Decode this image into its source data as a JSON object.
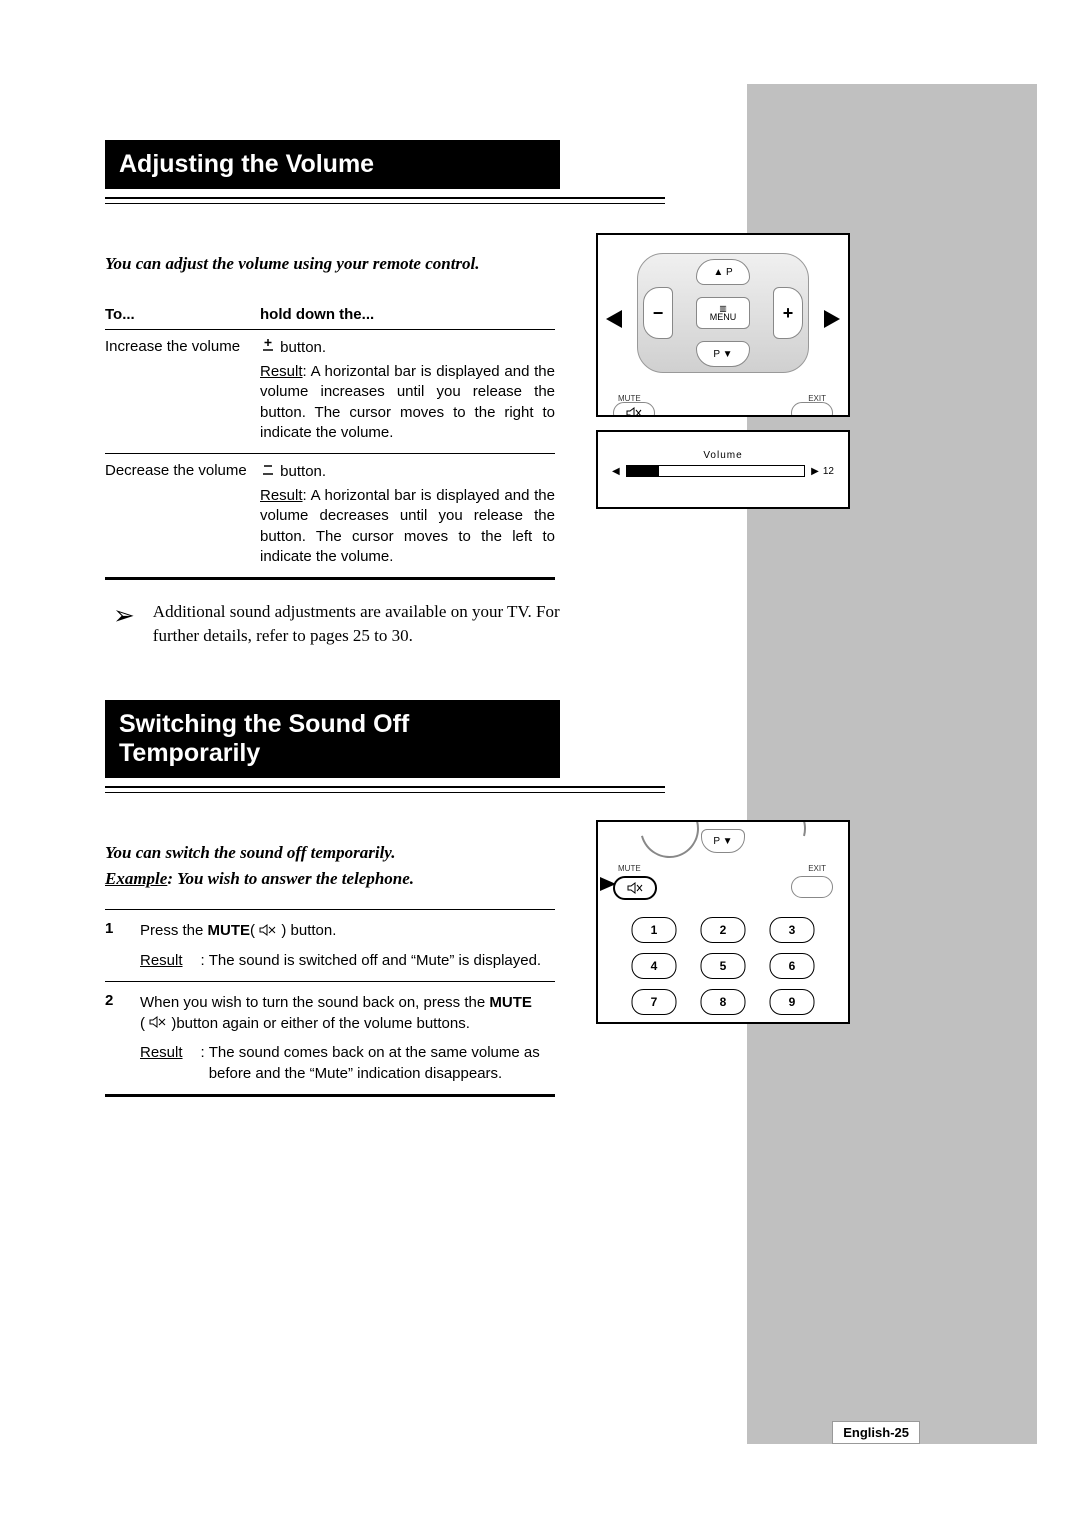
{
  "section1": {
    "title": "Adjusting the Volume",
    "intro": "You can adjust the volume using your remote control.",
    "table": {
      "head1": "To...",
      "head2": "hold down the...",
      "row1": {
        "action": "Increase the volume",
        "btn_suffix": "button.",
        "result_label": "Result",
        "result": ": A horizontal bar is displayed and the volume increases until you release the button. The cursor moves to the right to indicate the volume."
      },
      "row2": {
        "action": "Decrease the volume",
        "btn_suffix": "button.",
        "result_label": "Result",
        "result": ": A horizontal bar is displayed and the volume decreases until you release the button. The cursor moves to the left to indicate the volume."
      }
    },
    "note": "Additional sound adjustments are available on your TV. For further details, refer to pages 25 to 30."
  },
  "section2": {
    "title": "Switching the Sound Off Temporarily",
    "intro1": "You can switch the sound off temporarily.",
    "intro2_label": "Example",
    "intro2_text": ":   You wish to answer the telephone.",
    "steps": {
      "s1": {
        "num": "1",
        "text_a": "Press the ",
        "mute": "MUTE",
        "text_b": "(",
        "text_c": ") button.",
        "result_label": "Result",
        "result_colon": ":",
        "result": "The sound is switched off and “Mute” is displayed."
      },
      "s2": {
        "num": "2",
        "text_a": "When you wish to turn the sound back on, press the ",
        "mute": "MUTE",
        "text_b": " (",
        "text_c": ")button again or either of the volume buttons.",
        "result_label": "Result",
        "result_colon": ":",
        "result": "The sound comes back on at the same volume as before and the “Mute” indication disappears."
      }
    }
  },
  "remote": {
    "menu": "MENU",
    "p_up": "▲ P",
    "p_down": "P ▼",
    "minus": "−",
    "plus": "+",
    "mute": "MUTE",
    "exit": "EXIT"
  },
  "osd": {
    "label": "Volume",
    "left": "◀",
    "right": "▶",
    "value": "12",
    "fill_percent": 18
  },
  "numpad": [
    "1",
    "2",
    "3",
    "4",
    "5",
    "6",
    "7",
    "8",
    "9"
  ],
  "page_number": "English-25",
  "colors": {
    "sidebar": "#c0c0c0",
    "title_bg": "#000000",
    "title_fg": "#ffffff"
  }
}
